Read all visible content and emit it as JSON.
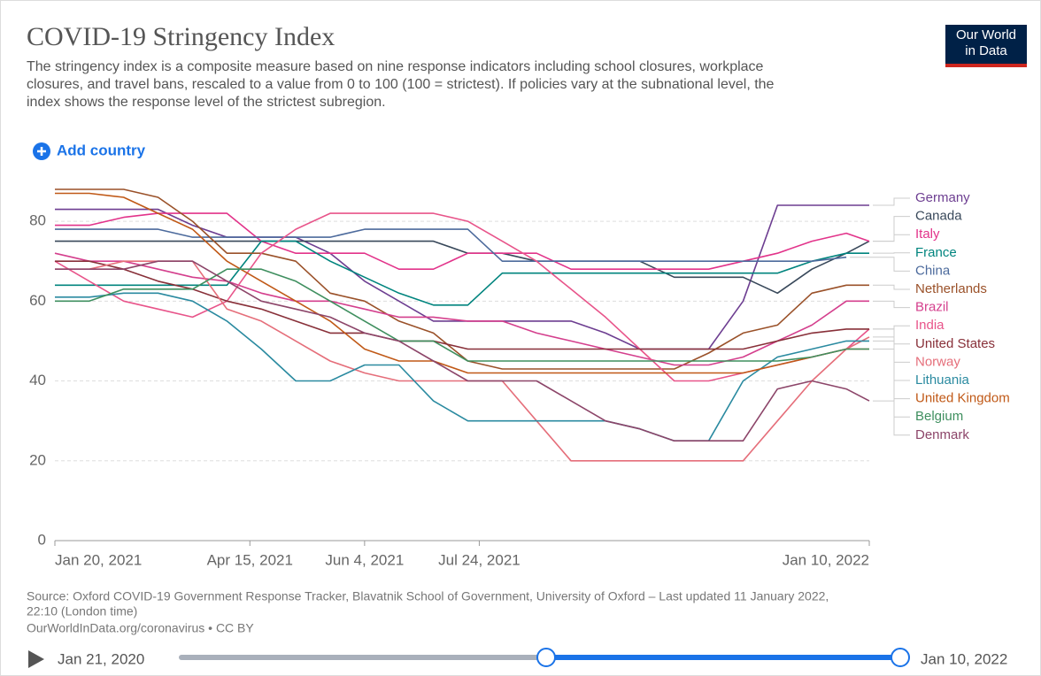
{
  "page": {
    "title": "COVID-19 Stringency Index",
    "subtitle": [
      "The stringency index is a composite measure based on nine response indicators including school closures, workplace",
      "closures, and travel bans, rescaled to a value from 0 to 100 (100 = strictest). If policies vary at the subnational level, the",
      "index shows the response level of the strictest subregion."
    ],
    "logo": [
      "Our World",
      "in Data"
    ],
    "add_button": "Add country",
    "source": [
      "Source: Oxford COVID-19 Government Response Tracker, Blavatnik School of Government, University of Oxford – Last updated 11 January 2022,",
      "22:10 (London time)",
      "OurWorldInData.org/coronavirus • CC BY"
    ],
    "timeline": {
      "start": "Jan 21, 2020",
      "end": "Jan 10, 2022"
    }
  },
  "chart_data": {
    "type": "line",
    "x": [
      "2021-01-20",
      "2021-02-04",
      "2021-02-19",
      "2021-03-06",
      "2021-03-21",
      "2021-04-05",
      "2021-04-20",
      "2021-05-05",
      "2021-05-20",
      "2021-06-04",
      "2021-06-19",
      "2021-07-04",
      "2021-07-19",
      "2021-08-03",
      "2021-08-18",
      "2021-09-02",
      "2021-09-17",
      "2021-10-02",
      "2021-10-17",
      "2021-11-01",
      "2021-11-16",
      "2021-12-01",
      "2021-12-16",
      "2021-12-31",
      "2022-01-10"
    ],
    "xlim": [
      "2021-01-20",
      "2022-01-10"
    ],
    "xticks": [
      {
        "value": "2021-01-20",
        "label": "Jan 20, 2021"
      },
      {
        "value": "2021-04-15",
        "label": "Apr 15, 2021"
      },
      {
        "value": "2021-06-04",
        "label": "Jun 4, 2021"
      },
      {
        "value": "2021-07-24",
        "label": "Jul 24, 2021"
      },
      {
        "value": "2022-01-10",
        "label": "Jan 10, 2022"
      }
    ],
    "ylim": [
      0,
      88
    ],
    "yticks": [
      0,
      20,
      40,
      60,
      80
    ],
    "grid": true,
    "series": [
      {
        "name": "Germany",
        "color": "#6d3e91",
        "values": [
          83,
          83,
          83,
          83,
          79,
          76,
          76,
          76,
          72,
          65,
          60,
          55,
          55,
          55,
          55,
          55,
          52,
          48,
          48,
          48,
          60,
          84,
          84,
          84,
          84
        ]
      },
      {
        "name": "Canada",
        "color": "#38485a",
        "values": [
          75,
          75,
          75,
          75,
          75,
          75,
          75,
          75,
          75,
          75,
          75,
          75,
          72,
          72,
          70,
          70,
          70,
          70,
          66,
          66,
          66,
          62,
          68,
          72,
          75
        ]
      },
      {
        "name": "Italy",
        "color": "#e2338a",
        "values": [
          79,
          79,
          81,
          82,
          82,
          82,
          75,
          72,
          72,
          72,
          68,
          68,
          72,
          72,
          72,
          68,
          68,
          68,
          68,
          68,
          70,
          72,
          75,
          77,
          75
        ]
      },
      {
        "name": "France",
        "color": "#00847e",
        "values": [
          64,
          64,
          64,
          64,
          64,
          64,
          75,
          75,
          70,
          66,
          62,
          59,
          59,
          67,
          67,
          67,
          67,
          67,
          67,
          67,
          67,
          67,
          70,
          72,
          72
        ]
      },
      {
        "name": "China",
        "color": "#4c6a9c",
        "values": [
          78,
          78,
          78,
          78,
          76,
          76,
          76,
          76,
          76,
          78,
          78,
          78,
          78,
          70,
          70,
          70,
          70,
          70,
          70,
          70,
          70,
          70,
          70,
          71,
          null
        ]
      },
      {
        "name": "Netherlands",
        "color": "#9a5129",
        "values": [
          88,
          88,
          88,
          86,
          80,
          72,
          72,
          70,
          62,
          60,
          55,
          52,
          45,
          43,
          43,
          43,
          43,
          43,
          43,
          47,
          52,
          54,
          62,
          64,
          64
        ]
      },
      {
        "name": "Brazil",
        "color": "#d43f8d",
        "values": [
          72,
          70,
          70,
          68,
          66,
          65,
          62,
          60,
          60,
          58,
          56,
          56,
          55,
          55,
          52,
          50,
          48,
          46,
          44,
          44,
          46,
          50,
          54,
          60,
          60
        ]
      },
      {
        "name": "India",
        "color": "#e8548a",
        "values": [
          70,
          65,
          60,
          58,
          56,
          60,
          72,
          78,
          82,
          82,
          82,
          82,
          80,
          75,
          70,
          63,
          56,
          48,
          40,
          40,
          42,
          44,
          46,
          48,
          53
        ]
      },
      {
        "name": "United States",
        "color": "#883039",
        "values": [
          70,
          70,
          68,
          65,
          63,
          60,
          58,
          55,
          52,
          52,
          50,
          50,
          48,
          48,
          48,
          48,
          48,
          48,
          48,
          48,
          48,
          50,
          52,
          53,
          53
        ]
      },
      {
        "name": "Norway",
        "color": "#e56e7a",
        "values": [
          68,
          68,
          70,
          70,
          70,
          58,
          55,
          50,
          45,
          42,
          40,
          40,
          40,
          40,
          30,
          20,
          20,
          20,
          20,
          20,
          20,
          30,
          40,
          48,
          51
        ]
      },
      {
        "name": "Lithuania",
        "color": "#2a8aa0",
        "values": [
          61,
          61,
          62,
          62,
          60,
          55,
          48,
          40,
          40,
          44,
          44,
          35,
          30,
          30,
          30,
          30,
          30,
          28,
          25,
          25,
          40,
          46,
          48,
          50,
          50
        ]
      },
      {
        "name": "United Kingdom",
        "color": "#c05917",
        "values": [
          87,
          87,
          86,
          82,
          78,
          70,
          65,
          60,
          55,
          48,
          45,
          45,
          42,
          42,
          42,
          42,
          42,
          42,
          42,
          42,
          42,
          44,
          46,
          48,
          48
        ]
      },
      {
        "name": "Belgium",
        "color": "#3f8f5f",
        "values": [
          60,
          60,
          63,
          63,
          63,
          68,
          68,
          65,
          60,
          55,
          50,
          50,
          45,
          45,
          45,
          45,
          45,
          45,
          45,
          45,
          45,
          45,
          46,
          48,
          48
        ]
      },
      {
        "name": "Denmark",
        "color": "#8c4569",
        "values": [
          68,
          68,
          68,
          70,
          70,
          65,
          60,
          58,
          56,
          52,
          50,
          45,
          40,
          40,
          40,
          35,
          30,
          28,
          25,
          25,
          25,
          38,
          40,
          38,
          35
        ]
      }
    ]
  }
}
